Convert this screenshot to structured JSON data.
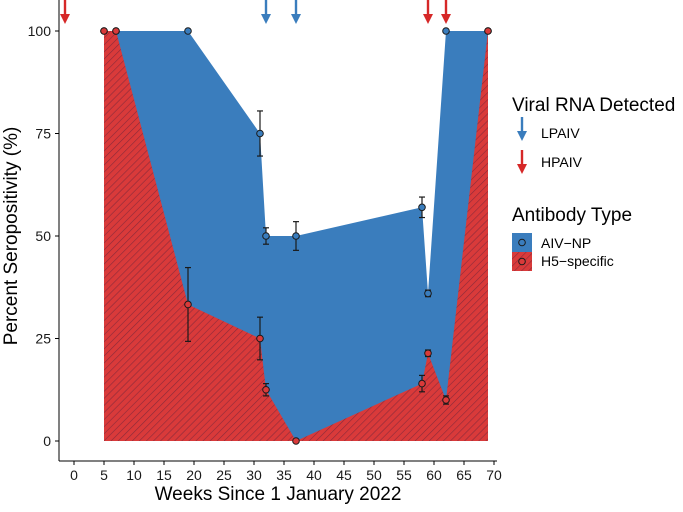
{
  "chart_data": {
    "type": "area",
    "title": "",
    "xlabel": "Weeks Since 1 January 2022",
    "ylabel": "Percent Seropositivity (%)",
    "xlim": [
      -2.5,
      70.5
    ],
    "ylim": [
      0,
      100
    ],
    "x_ticks": [
      0,
      5,
      10,
      15,
      20,
      25,
      30,
      35,
      40,
      45,
      50,
      55,
      60,
      65,
      70
    ],
    "y_ticks": [
      0,
      25,
      50,
      75,
      100
    ],
    "colors": {
      "AIV-NP": "#3a7dbd",
      "H5-specific": "#d93a3a",
      "LPAIV": "#3a7dbd",
      "HPAIV": "#d62828"
    },
    "series": [
      {
        "name": "AIV−NP",
        "key": "AIV-NP",
        "points": [
          {
            "x": 5,
            "y": 100
          },
          {
            "x": 7,
            "y": 100
          },
          {
            "x": 19,
            "y": 100
          },
          {
            "x": 31,
            "y": 75,
            "err": 5.5
          },
          {
            "x": 32,
            "y": 50,
            "err": 2
          },
          {
            "x": 37,
            "y": 50,
            "err": 3.5
          },
          {
            "x": 58,
            "y": 57,
            "err": 2.5
          },
          {
            "x": 59,
            "y": 36,
            "err": 0.8
          },
          {
            "x": 62,
            "y": 100
          },
          {
            "x": 69,
            "y": 100
          }
        ]
      },
      {
        "name": "H5−specific",
        "key": "H5-specific",
        "points": [
          {
            "x": 5,
            "y": 100
          },
          {
            "x": 7,
            "y": 100
          },
          {
            "x": 19,
            "y": 33.3,
            "err": 9
          },
          {
            "x": 31,
            "y": 25,
            "err": 5.2
          },
          {
            "x": 32,
            "y": 12.5,
            "err": 1.5
          },
          {
            "x": 37,
            "y": 0
          },
          {
            "x": 58,
            "y": 14,
            "err": 2
          },
          {
            "x": 59,
            "y": 21.4,
            "err": 0.8
          },
          {
            "x": 62,
            "y": 10,
            "err": 1
          },
          {
            "x": 69,
            "y": 100
          }
        ]
      }
    ],
    "viral_rna_detected": [
      {
        "week": -1.5,
        "type": "HPAIV"
      },
      {
        "week": 32,
        "type": "LPAIV"
      },
      {
        "week": 37,
        "type": "LPAIV"
      },
      {
        "week": 59,
        "type": "HPAIV"
      },
      {
        "week": 62,
        "type": "HPAIV"
      }
    ],
    "legend": {
      "position": "right",
      "viral_title": "Viral RNA Detected",
      "viral_items": [
        {
          "label": "LPAIV",
          "key": "LPAIV"
        },
        {
          "label": "HPAIV",
          "key": "HPAIV"
        }
      ],
      "antibody_title": "Antibody Type",
      "antibody_items": [
        {
          "label": "AIV−NP",
          "key": "AIV-NP"
        },
        {
          "label": "H5−specific",
          "key": "H5-specific"
        }
      ]
    }
  }
}
